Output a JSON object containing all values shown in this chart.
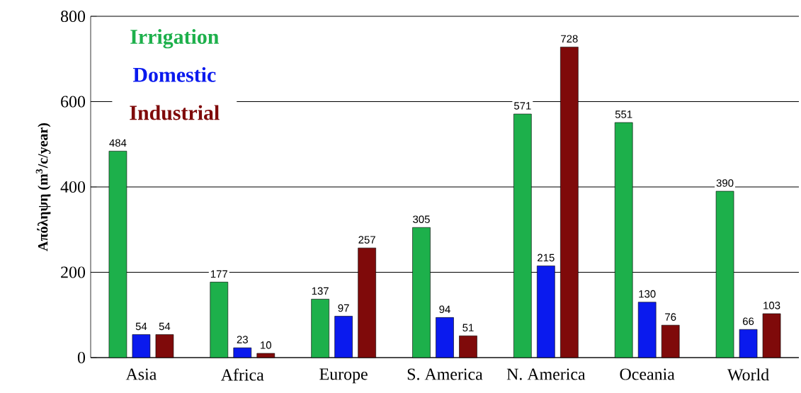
{
  "chart_data": {
    "type": "bar",
    "ylabel": "Απόληψη (m$^{3}$/c/year)",
    "categories": [
      "Asia",
      "Africa",
      "Europe",
      "S. America",
      "N. America",
      "Oceania",
      "World"
    ],
    "series": [
      {
        "name": "Irrigation",
        "color": "#1db04b",
        "values": [
          484,
          177,
          137,
          305,
          571,
          551,
          390
        ]
      },
      {
        "name": "Domestic",
        "color": "#0a1aee",
        "values": [
          54,
          23,
          97,
          94,
          215,
          130,
          66
        ]
      },
      {
        "name": "Industrial",
        "color": "#7f0a0a",
        "values": [
          54,
          10,
          257,
          51,
          728,
          76,
          103
        ]
      }
    ],
    "ylim": [
      0,
      800
    ],
    "yticks": [
      0,
      200,
      400,
      600,
      800
    ],
    "grid": "y",
    "legend": "top left",
    "data_labels": true
  }
}
